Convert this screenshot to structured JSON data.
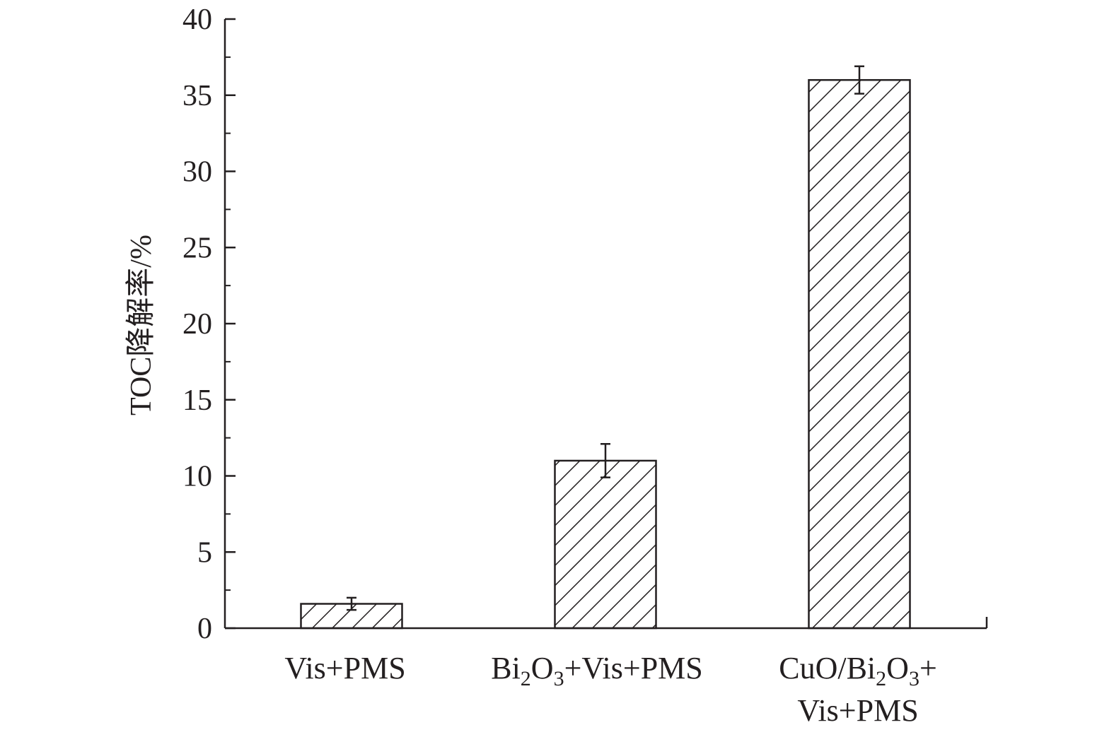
{
  "chart_data": {
    "type": "bar",
    "ylabel": "TOC降解率/%",
    "xlabel": "",
    "ylim": [
      0,
      40
    ],
    "yticks": [
      0,
      5,
      10,
      15,
      20,
      25,
      30,
      35,
      40
    ],
    "yticks_minor_step": 2.5,
    "categories": [
      {
        "lines": [
          [
            {
              "t": "Vis+PMS"
            }
          ]
        ]
      },
      {
        "lines": [
          [
            {
              "t": "Bi"
            },
            {
              "t": "2",
              "sub": true
            },
            {
              "t": "O"
            },
            {
              "t": "3",
              "sub": true
            },
            {
              "t": "+Vis+PMS"
            }
          ]
        ]
      },
      {
        "lines": [
          [
            {
              "t": "CuO/Bi"
            },
            {
              "t": "2",
              "sub": true
            },
            {
              "t": "O"
            },
            {
              "t": "3",
              "sub": true
            },
            {
              "t": "+"
            }
          ],
          [
            {
              "t": "Vis+PMS"
            }
          ]
        ]
      }
    ],
    "values": [
      1.6,
      11.0,
      36.0
    ],
    "errors": [
      0.4,
      1.1,
      0.9
    ],
    "fill": "diagonal-hatch",
    "colors": {
      "bar_stroke": "#231f20",
      "axis": "#231f20"
    },
    "grid": false
  }
}
